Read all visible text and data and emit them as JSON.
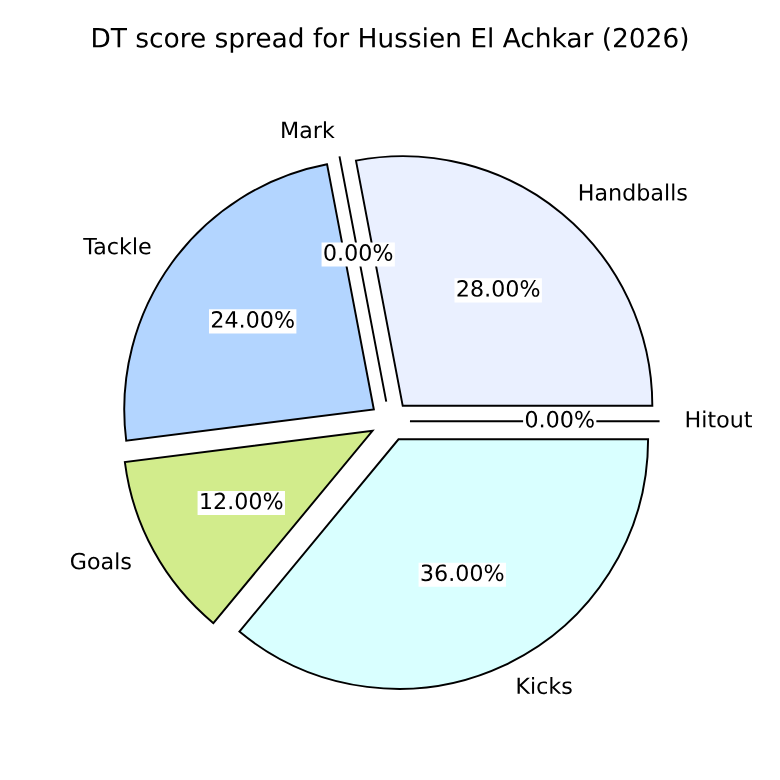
{
  "chart_data": {
    "type": "pie",
    "title": "DT score spread for Hussien El Achkar (2026)",
    "categories": [
      "Handballs",
      "Mark",
      "Tackle",
      "Goals",
      "Kicks",
      "Hitout"
    ],
    "values": [
      28,
      0,
      24,
      12,
      36,
      0
    ],
    "colors": [
      "#eaf0ff",
      "#ffe0b3",
      "#b3d5ff",
      "#d2ec8c",
      "#d9ffff",
      "#ffd0d0"
    ],
    "value_labels": [
      "28.00%",
      "0.00%",
      "24.00%",
      "12.00%",
      "36.00%",
      "0.00%"
    ],
    "legend": false
  }
}
